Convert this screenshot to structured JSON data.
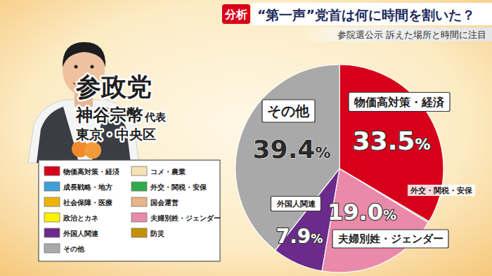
{
  "header": {
    "tag": "分析"
  },
  "speaker": {
    "party": "参政党",
    "name": "神谷宗幣",
    "role": "代表",
    "place": "東京・中央区"
  },
  "chart_data": {
    "type": "pie",
    "title": "“第一声”党首は何に時間を割いた？",
    "subtitle": "参院選公示 訴えた場所と時間に注目",
    "categories": [
      "物価高対策・経済",
      "コメ・農業",
      "成長戦略・地方",
      "外交・関税・安保",
      "社会保障・医療",
      "国会運営",
      "政治とカネ",
      "夫婦別姓・ジェンダー",
      "外国人関連",
      "防災",
      "その他"
    ],
    "values": [
      33.5,
      null,
      null,
      0.2,
      null,
      null,
      null,
      19.0,
      7.9,
      null,
      39.4
    ],
    "value_labels": [
      "33.5%",
      null,
      null,
      null,
      null,
      null,
      null,
      "19.0%",
      "7.9%",
      null,
      "39.4%"
    ],
    "colors": [
      "#d7001b",
      "#f7e2b6",
      "#3f9fd8",
      "#2faa4a",
      "#f0b400",
      "#e9b487",
      "#fff200",
      "#e98aaa",
      "#6b2a8c",
      "#c39200",
      "#a9a9a9"
    ],
    "data_labels": true,
    "legend": "lower left"
  }
}
